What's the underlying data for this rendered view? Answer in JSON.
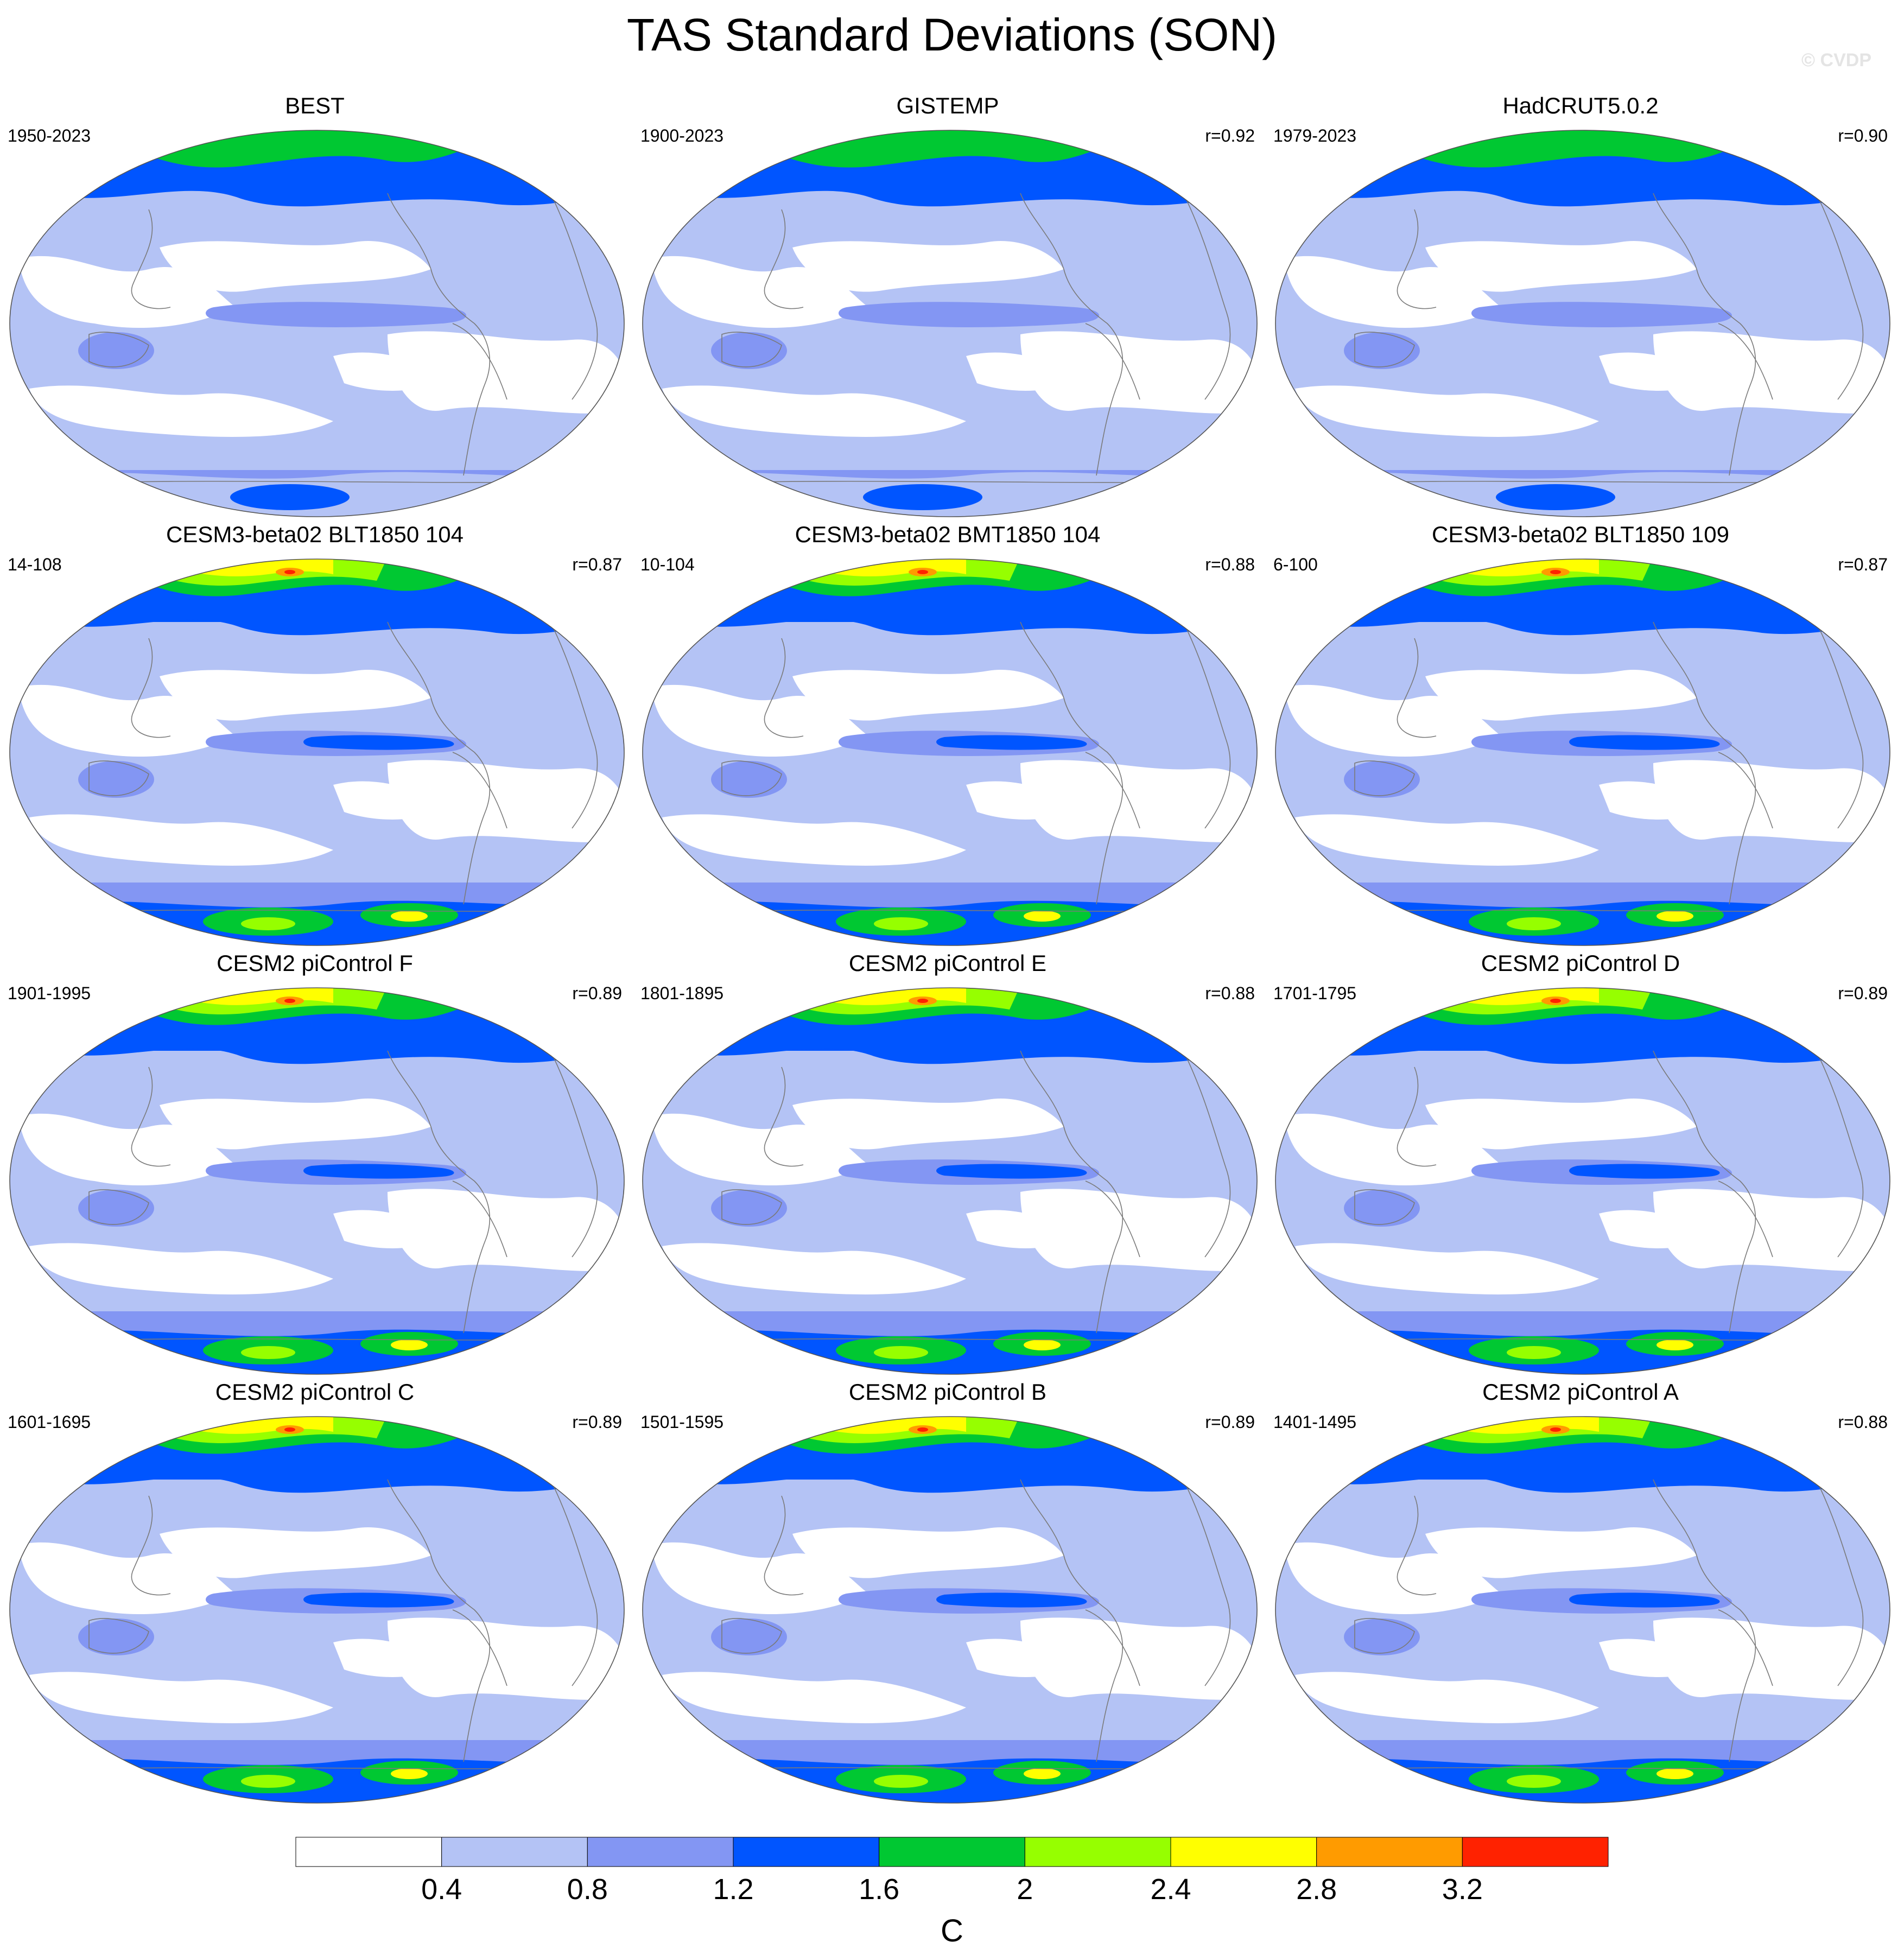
{
  "title": "TAS Standard Deviations (SON)",
  "watermark": "© CVDP",
  "colorbar": {
    "levels": [
      "0.4",
      "0.8",
      "1.2",
      "1.6",
      "2",
      "2.4",
      "2.8",
      "3.2"
    ],
    "colors": [
      "#ffffff",
      "#b4c3f5",
      "#8396f3",
      "#0055ff",
      "#00c832",
      "#96ff00",
      "#ffff00",
      "#ff9b00",
      "#ff2200"
    ],
    "unit": "C"
  },
  "panels": [
    {
      "name": "BEST",
      "period": "1950-2023",
      "r": ""
    },
    {
      "name": "GISTEMP",
      "period": "1900-2023",
      "r": "r=0.92"
    },
    {
      "name": "HadCRUT5.0.2",
      "period": "1979-2023",
      "r": "r=0.90"
    },
    {
      "name": "CESM3-beta02 BLT1850 104",
      "period": "14-108",
      "r": "r=0.87"
    },
    {
      "name": "CESM3-beta02 BMT1850 104",
      "period": "10-104",
      "r": "r=0.88"
    },
    {
      "name": "CESM3-beta02 BLT1850 109",
      "period": "6-100",
      "r": "r=0.87"
    },
    {
      "name": "CESM2 piControl F",
      "period": "1901-1995",
      "r": "r=0.89"
    },
    {
      "name": "CESM2 piControl E",
      "period": "1801-1895",
      "r": "r=0.88"
    },
    {
      "name": "CESM2 piControl D",
      "period": "1701-1795",
      "r": "r=0.89"
    },
    {
      "name": "CESM2 piControl C",
      "period": "1601-1695",
      "r": "r=0.89"
    },
    {
      "name": "CESM2 piControl B",
      "period": "1501-1595",
      "r": "r=0.89"
    },
    {
      "name": "CESM2 piControl A",
      "period": "1401-1495",
      "r": "r=0.88"
    }
  ]
}
